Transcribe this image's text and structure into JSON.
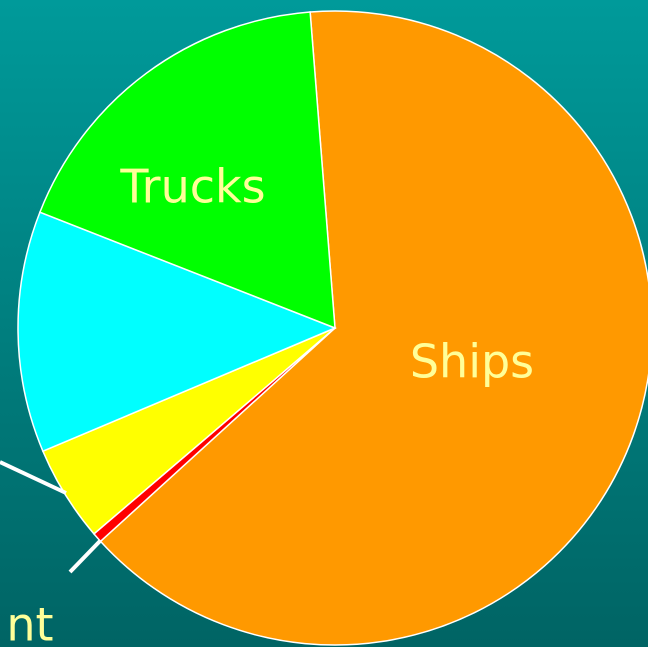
{
  "chart_data": {
    "type": "pie",
    "categories": [
      "Ships",
      "nt",
      null,
      null,
      "Trucks"
    ],
    "values": [
      64.5,
      0.5,
      4.9,
      12.3,
      17.8
    ],
    "colors": [
      "#ff9900",
      "#ff0000",
      "#ffff00",
      "#00ffff",
      "#00ff00"
    ]
  }
}
